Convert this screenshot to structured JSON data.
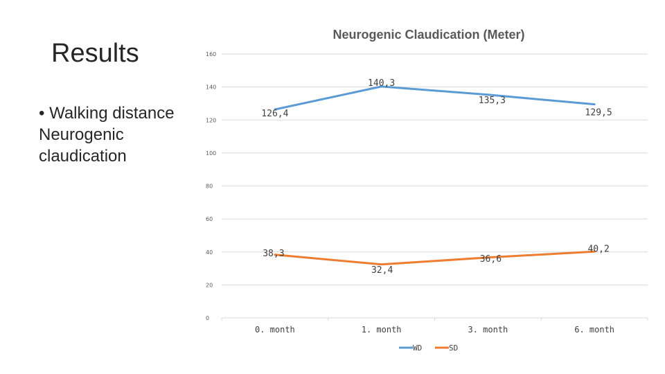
{
  "slide": {
    "title": "Results",
    "bullet": "• Walking distance",
    "subtext": "Neurogenic claudication"
  },
  "chart_data": {
    "type": "line",
    "title": "Neurogenic Claudication (Meter)",
    "categories": [
      "0. month",
      "1. month",
      "3. month",
      "6. month"
    ],
    "series": [
      {
        "name": "WD",
        "values": [
          126.4,
          140.3,
          135.3,
          129.5
        ],
        "labels": [
          "126,4",
          "140,3",
          "135,3",
          "129,5"
        ],
        "color": "#5B9BD5"
      },
      {
        "name": "SD",
        "values": [
          38.3,
          32.4,
          36.6,
          40.2
        ],
        "labels": [
          "38,3",
          "32,4",
          "36,6",
          "40,2"
        ],
        "color": "#ED7D31"
      }
    ],
    "ylim": [
      0,
      160
    ],
    "yticks": [
      0,
      20,
      40,
      60,
      80,
      100,
      120,
      140,
      160
    ],
    "grid": true,
    "legend": "bottom"
  }
}
